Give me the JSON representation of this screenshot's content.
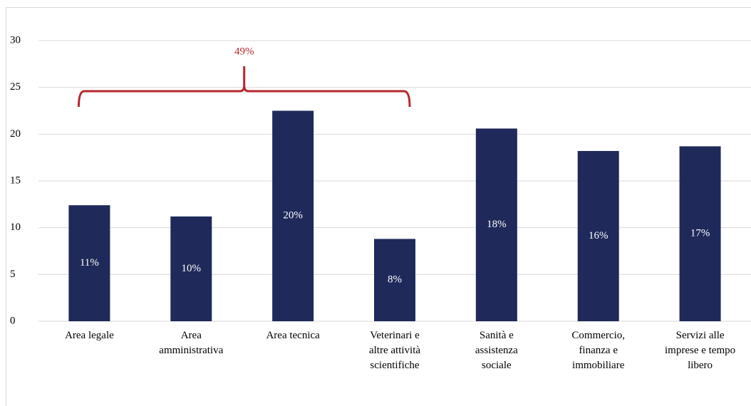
{
  "chart_data": {
    "type": "bar",
    "categories": [
      "Area legale",
      "Area\namministrativa",
      "Area tecnica",
      "Veterinari e\naltre attività\nscientifiche",
      "Sanità e\nassistenza\nsociale",
      "Commercio,\nfinanza e\nimmobiliare",
      "Servizi alle\nimprese e tempo\nlibero"
    ],
    "values": [
      12.4,
      11.2,
      22.5,
      8.8,
      20.6,
      18.2,
      18.7
    ],
    "bar_labels": [
      "11%",
      "10%",
      "20%",
      "8%",
      "18%",
      "16%",
      "17%"
    ],
    "annotation": "49%",
    "color": "#1f2a5a",
    "ylim": [
      0,
      30
    ],
    "yticks": [
      0,
      5,
      10,
      15,
      20,
      25,
      30
    ],
    "grid": true
  }
}
